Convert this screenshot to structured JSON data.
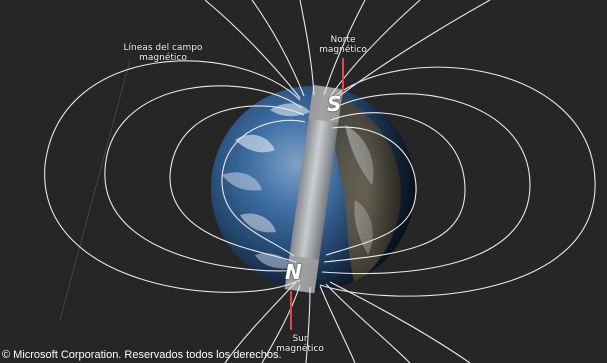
{
  "labels": {
    "field_lines_line1": "Líneas del campo",
    "field_lines_line2": "magnético",
    "north_line1": "Norte",
    "north_line2": "magnético",
    "south_line1": "Sur",
    "south_line2": "magnético",
    "pole_s": "S",
    "pole_n": "N"
  },
  "footer": {
    "copyright": "© Microsoft Corporation. Reservados todos los derechos."
  },
  "colors": {
    "background": "#262626",
    "field_line": "#e8e8e8",
    "pointer": "#e04848",
    "ocean": "#2f5d95",
    "magnet": "#c9c9c9"
  }
}
